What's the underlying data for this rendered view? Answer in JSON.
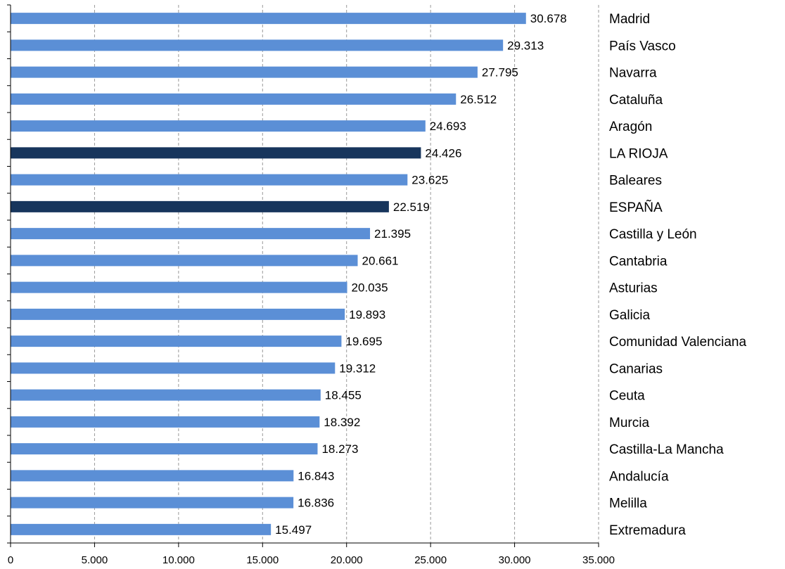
{
  "chart_data": {
    "type": "bar",
    "orientation": "horizontal",
    "title": "",
    "xlabel": "",
    "ylabel": "",
    "xlim": [
      0,
      35000
    ],
    "x_ticks": [
      0,
      5000,
      10000,
      15000,
      20000,
      25000,
      30000,
      35000
    ],
    "x_tick_labels": [
      "0",
      "5.000",
      "10.000",
      "15.000",
      "20.000",
      "25.000",
      "30.000",
      "35.000"
    ],
    "grid": "vertical dashed",
    "categories": [
      "Madrid",
      "País Vasco",
      "Navarra",
      "Cataluña",
      "Aragón",
      "LA RIOJA",
      "Baleares",
      "ESPAÑA",
      "Castilla y León",
      "Cantabria",
      "Asturias",
      "Galicia",
      "Comunidad Valenciana",
      "Canarias",
      "Ceuta",
      "Murcia",
      "Castilla-La Mancha",
      "Andalucía",
      "Melilla",
      "Extremadura"
    ],
    "values": [
      30678,
      29313,
      27795,
      26512,
      24693,
      24426,
      23625,
      22519,
      21395,
      20661,
      20035,
      19893,
      19695,
      19312,
      18455,
      18392,
      18273,
      16843,
      16836,
      15497
    ],
    "value_labels": [
      "30.678",
      "29.313",
      "27.795",
      "26.512",
      "24.693",
      "24.426",
      "23.625",
      "22.519",
      "21.395",
      "20.661",
      "20.035",
      "19.893",
      "19.695",
      "19.312",
      "18.455",
      "18.392",
      "18.273",
      "16.843",
      "16.836",
      "15.497"
    ],
    "highlighted": [
      "LA RIOJA",
      "ESPAÑA"
    ],
    "colors": {
      "bar": "#5b8fd6",
      "highlight": "#17355c",
      "grid": "#999999",
      "axis": "#000000"
    }
  }
}
